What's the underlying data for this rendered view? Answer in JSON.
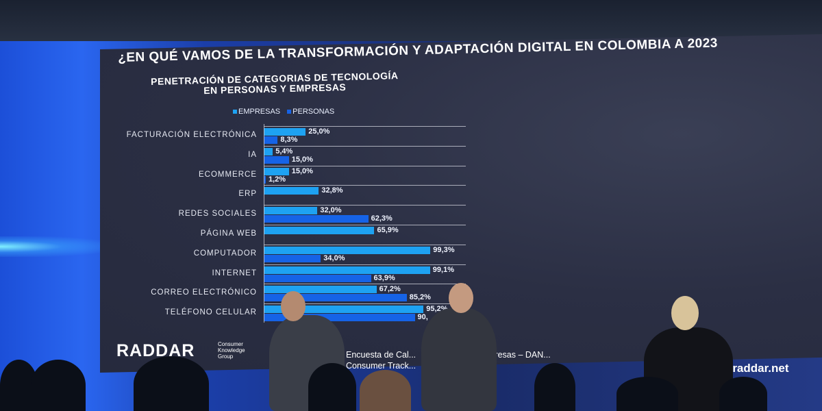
{
  "slide": {
    "title": "¿EN QUÉ VAMOS DE LA TRANSFORMACIÓN Y  ADAPTACIÓN DIGITAL EN COLOMBIA A 2023",
    "logo": "RADDAR",
    "logo_sub": "Consumer Knowledge Group",
    "source_text": "Encuesta de Cal...  DANE; ENTIC Empresas – DAN...\nConsumer Track...   Transform... Digital.",
    "url": "w.raddar.net"
  },
  "colors": {
    "empresas": "#1ea2f2",
    "personas": "#1663e6",
    "slide_bg": "#2b2f44",
    "wall": "#1c4fd8"
  },
  "chart_data": {
    "type": "bar",
    "orientation": "horizontal",
    "title": "PENETRACIÓN DE CATEGORIAS DE TECNOLOGÍA EN PERSONAS Y EMPRESAS",
    "title_lines": [
      "PENETRACIÓN DE CATEGORIAS DE TECNOLOGÍA",
      "EN PERSONAS Y EMPRESAS"
    ],
    "legend_position": "top",
    "xlim": [
      0,
      100
    ],
    "unit": "%",
    "categories": [
      "FACTURACIÓN ELECTRÓNICA",
      "IA",
      "ECOMMERCE",
      "ERP",
      "REDES SOCIALES",
      "PÁGINA WEB",
      "COMPUTADOR",
      "INTERNET",
      "CORREO ELECTRÓNICO",
      "TELÉFONO CELULAR"
    ],
    "series": [
      {
        "name": "EMPRESAS",
        "values": [
          25.0,
          5.4,
          15.0,
          32.8,
          32.0,
          65.9,
          99.3,
          99.1,
          67.2,
          95.2
        ],
        "labels": [
          "25,0%",
          "5,4%",
          "15,0%",
          "32,8%",
          "32,0%",
          "65,9%",
          "99,3%",
          "99,1%",
          "67,2%",
          "95,2%"
        ]
      },
      {
        "name": "PERSONAS",
        "values": [
          8.3,
          15.0,
          1.2,
          null,
          62.3,
          null,
          34.0,
          63.9,
          85.2,
          90
        ],
        "labels": [
          "8,3%",
          "15,0%",
          "1,2%",
          null,
          "62,3%",
          null,
          "34,0%",
          "63,9%",
          "85,2%",
          "90,"
        ]
      }
    ]
  }
}
